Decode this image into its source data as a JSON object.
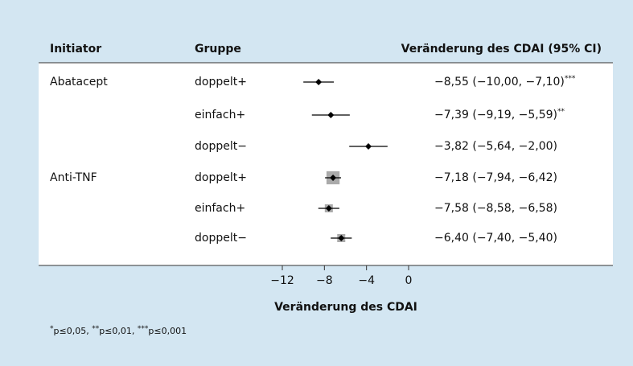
{
  "chart_data": {
    "type": "forest",
    "headers": [
      "Initiator",
      "Gruppe",
      "Veränderung des CDAI (95% CI)"
    ],
    "categories": [
      "Abatacept",
      null,
      null,
      "Anti-TNF",
      null,
      null
    ],
    "groups": [
      "doppelt+",
      "einfach+",
      "doppelt−",
      "doppelt+",
      "einfach+",
      "doppelt−"
    ],
    "values": [
      -8.55,
      -7.39,
      -3.82,
      -7.18,
      -7.58,
      -6.4
    ],
    "lower": [
      -10.0,
      -9.19,
      -5.64,
      -7.94,
      -8.58,
      -7.4
    ],
    "upper": [
      -7.1,
      -5.59,
      -2.0,
      -6.42,
      -6.58,
      -5.4
    ],
    "value_labels": [
      "−8,55 (−10,00, −7,10)",
      "−7,39 (−9,19, −5,59)",
      "−3,82 (−5,64, −2,00)",
      "−7,18 (−7,94, −6,42)",
      "−7,58 (−8,58, −6,58)",
      "−6,40 (−7,40, −5,40)"
    ],
    "significance": [
      "***",
      "**",
      null,
      null,
      null,
      null
    ],
    "xlabel": "Veränderung des CDAI",
    "xlim": [
      -12,
      0
    ],
    "xticks": [
      {
        "value": -12,
        "label": "−12"
      },
      {
        "value": -8,
        "label": "−8"
      },
      {
        "value": -4,
        "label": "−4"
      },
      0
    ],
    "color": "#000000",
    "box_color": "#aaaaaa",
    "footnote": [
      {
        "mark": "*",
        "text": "p≤0,05, "
      },
      {
        "mark": "**",
        "text": "p≤0,01, "
      },
      {
        "mark": "***",
        "text": "p≤0,001"
      }
    ]
  }
}
